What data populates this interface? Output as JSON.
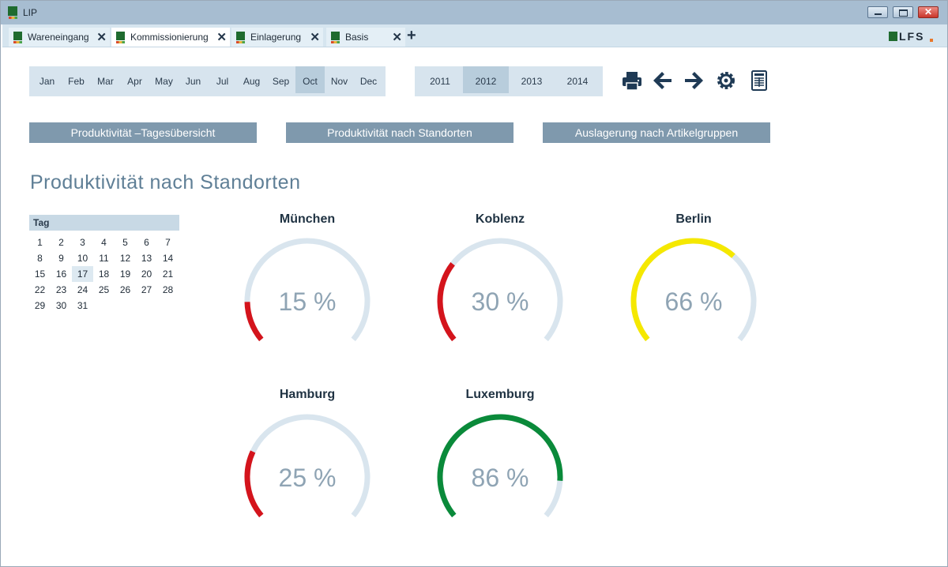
{
  "window": {
    "title": "LIP",
    "close_glyph": "✕"
  },
  "tabs": [
    {
      "label": "Wareneingang",
      "active": false
    },
    {
      "label": "Kommissionierung",
      "active": true
    },
    {
      "label": "Einlagerung",
      "active": false
    },
    {
      "label": "Basis",
      "active": false
    }
  ],
  "tab_close_glyph": "✕",
  "tab_add_glyph": "+",
  "logo": {
    "text": "LFS"
  },
  "months": [
    "Jan",
    "Feb",
    "Mar",
    "Apr",
    "May",
    "Jun",
    "Jul",
    "Aug",
    "Sep",
    "Oct",
    "Nov",
    "Dec"
  ],
  "selected_month": "Oct",
  "years": [
    "2011",
    "2012",
    "2013",
    "2014"
  ],
  "selected_year": "2012",
  "toolbar": {
    "icons": [
      "printer-icon",
      "arrow-left-icon",
      "arrow-right-icon",
      "gear-icon",
      "report-icon"
    ]
  },
  "nav_buttons": [
    {
      "label": "Produktivität –Tagesübersicht"
    },
    {
      "label": "Produktivität nach Standorten"
    },
    {
      "label": "Auslagerung nach Artikelgruppen"
    }
  ],
  "page_title": "Produktivität nach Standorten",
  "calendar": {
    "header": "Tag",
    "days": [
      "1",
      "2",
      "3",
      "4",
      "5",
      "6",
      "7",
      "8",
      "9",
      "10",
      "11",
      "12",
      "13",
      "14",
      "15",
      "16",
      "17",
      "18",
      "19",
      "20",
      "21",
      "22",
      "23",
      "24",
      "25",
      "26",
      "27",
      "28",
      "29",
      "30",
      "31"
    ],
    "selected_day": "17"
  },
  "gauges": [
    {
      "location": "München",
      "value": 15,
      "label": "15 %",
      "color": "#d4141c"
    },
    {
      "location": "Koblenz",
      "value": 30,
      "label": "30 %",
      "color": "#d4141c"
    },
    {
      "location": "Berlin",
      "value": 66,
      "label": "66 %",
      "color": "#f5e800"
    },
    {
      "location": "Hamburg",
      "value": 25,
      "label": "25 %",
      "color": "#d4141c"
    },
    {
      "location": "Luxemburg",
      "value": 86,
      "label": "86 %",
      "color": "#0a8a3a"
    }
  ],
  "colors": {
    "track": "#d9e5ee",
    "accent": "#7f99ad"
  }
}
